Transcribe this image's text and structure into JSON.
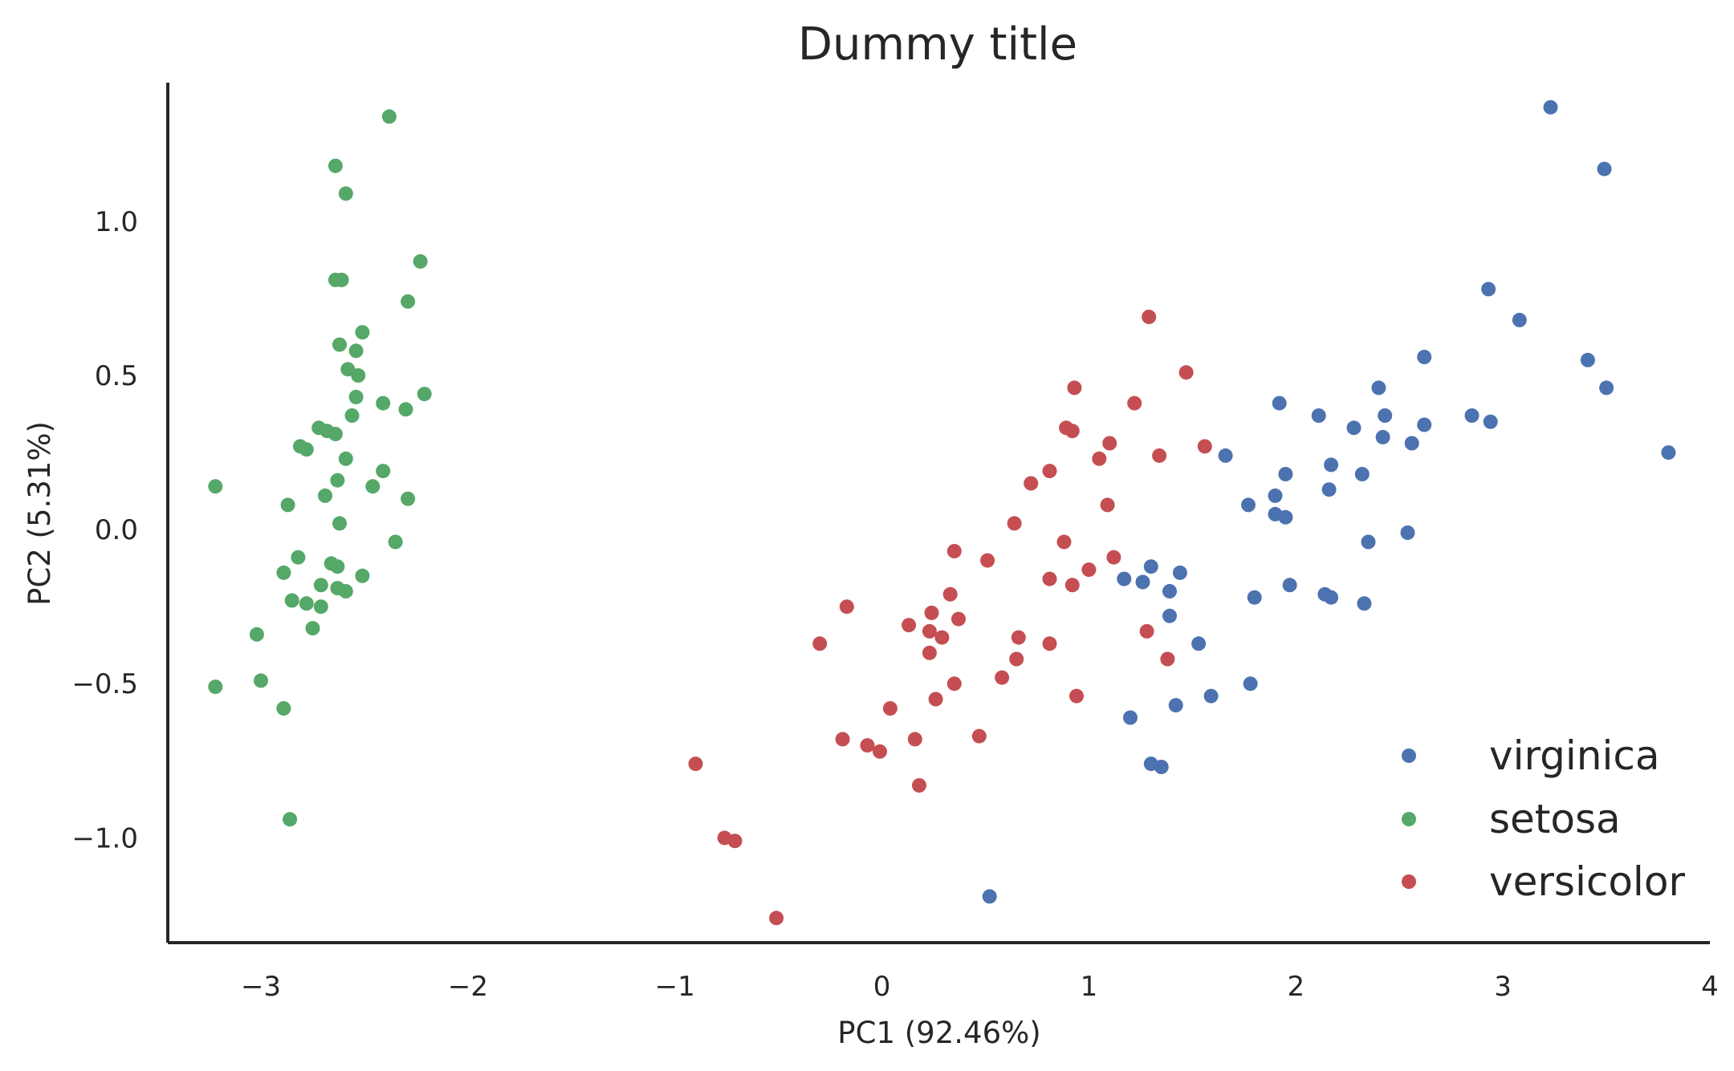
{
  "chart_data": {
    "type": "scatter",
    "title": "Dummy title",
    "xlabel": "PC1 (92.46%)",
    "ylabel": "PC2 (5.31%)",
    "xlim": [
      -3.45,
      4.0
    ],
    "ylim": [
      -1.34,
      1.45
    ],
    "xticks": [
      -3,
      -2,
      -1,
      0,
      1,
      2,
      3,
      4
    ],
    "xtick_labels": [
      "−3",
      "−2",
      "−1",
      "0",
      "1",
      "2",
      "3",
      "4"
    ],
    "yticks": [
      -1.0,
      -0.5,
      0.0,
      0.5,
      1.0
    ],
    "ytick_labels": [
      "−1.0",
      "−0.5",
      "0.0",
      "0.5",
      "1.0"
    ],
    "grid": false,
    "legend_position": "bottom-right",
    "series": [
      {
        "name": "virginica",
        "color": "#4c72b0",
        "points": [
          [
            3.23,
            1.37
          ],
          [
            3.49,
            1.17
          ],
          [
            2.93,
            0.78
          ],
          [
            3.08,
            0.68
          ],
          [
            3.41,
            0.55
          ],
          [
            3.5,
            0.46
          ],
          [
            3.8,
            0.25
          ],
          [
            2.62,
            0.56
          ],
          [
            2.4,
            0.46
          ],
          [
            2.43,
            0.37
          ],
          [
            2.42,
            0.3
          ],
          [
            2.56,
            0.28
          ],
          [
            2.62,
            0.34
          ],
          [
            2.85,
            0.37
          ],
          [
            2.94,
            0.35
          ],
          [
            1.92,
            0.41
          ],
          [
            2.11,
            0.37
          ],
          [
            2.28,
            0.33
          ],
          [
            2.17,
            0.21
          ],
          [
            2.32,
            0.18
          ],
          [
            2.16,
            0.13
          ],
          [
            1.95,
            0.18
          ],
          [
            1.9,
            0.11
          ],
          [
            1.9,
            0.05
          ],
          [
            1.95,
            0.04
          ],
          [
            1.77,
            0.08
          ],
          [
            1.66,
            0.24
          ],
          [
            2.35,
            -0.04
          ],
          [
            2.54,
            -0.01
          ],
          [
            1.3,
            -0.12
          ],
          [
            1.44,
            -0.14
          ],
          [
            1.17,
            -0.16
          ],
          [
            1.26,
            -0.17
          ],
          [
            1.39,
            -0.2
          ],
          [
            1.97,
            -0.18
          ],
          [
            1.8,
            -0.22
          ],
          [
            2.14,
            -0.21
          ],
          [
            2.17,
            -0.22
          ],
          [
            2.33,
            -0.24
          ],
          [
            1.39,
            -0.28
          ],
          [
            1.53,
            -0.37
          ],
          [
            1.78,
            -0.5
          ],
          [
            1.59,
            -0.54
          ],
          [
            1.42,
            -0.57
          ],
          [
            1.2,
            -0.61
          ],
          [
            1.3,
            -0.76
          ],
          [
            1.35,
            -0.77
          ],
          [
            0.52,
            -1.19
          ]
        ]
      },
      {
        "name": "setosa",
        "color": "#55a868",
        "points": [
          [
            -2.38,
            1.34
          ],
          [
            -2.64,
            1.18
          ],
          [
            -2.59,
            1.09
          ],
          [
            -2.23,
            0.87
          ],
          [
            -2.64,
            0.81
          ],
          [
            -2.61,
            0.81
          ],
          [
            -2.29,
            0.74
          ],
          [
            -2.51,
            0.64
          ],
          [
            -2.62,
            0.6
          ],
          [
            -2.54,
            0.58
          ],
          [
            -2.58,
            0.52
          ],
          [
            -2.53,
            0.5
          ],
          [
            -2.21,
            0.44
          ],
          [
            -2.54,
            0.43
          ],
          [
            -2.41,
            0.41
          ],
          [
            -2.3,
            0.39
          ],
          [
            -2.56,
            0.37
          ],
          [
            -2.72,
            0.33
          ],
          [
            -2.68,
            0.32
          ],
          [
            -2.64,
            0.31
          ],
          [
            -2.81,
            0.27
          ],
          [
            -2.78,
            0.26
          ],
          [
            -2.59,
            0.23
          ],
          [
            -2.41,
            0.19
          ],
          [
            -2.63,
            0.16
          ],
          [
            -2.46,
            0.14
          ],
          [
            -3.22,
            0.14
          ],
          [
            -2.69,
            0.11
          ],
          [
            -2.29,
            0.1
          ],
          [
            -2.87,
            0.08
          ],
          [
            -2.62,
            0.02
          ],
          [
            -2.35,
            -0.04
          ],
          [
            -2.82,
            -0.09
          ],
          [
            -2.66,
            -0.11
          ],
          [
            -2.63,
            -0.12
          ],
          [
            -2.89,
            -0.14
          ],
          [
            -2.51,
            -0.15
          ],
          [
            -2.71,
            -0.18
          ],
          [
            -2.63,
            -0.19
          ],
          [
            -2.59,
            -0.2
          ],
          [
            -2.85,
            -0.23
          ],
          [
            -2.78,
            -0.24
          ],
          [
            -2.71,
            -0.25
          ],
          [
            -2.75,
            -0.32
          ],
          [
            -3.02,
            -0.34
          ],
          [
            -3.0,
            -0.49
          ],
          [
            -3.22,
            -0.51
          ],
          [
            -2.89,
            -0.58
          ],
          [
            -2.86,
            -0.94
          ]
        ]
      },
      {
        "name": "versicolor",
        "color": "#c44e52",
        "points": [
          [
            1.29,
            0.69
          ],
          [
            1.47,
            0.51
          ],
          [
            0.93,
            0.46
          ],
          [
            1.22,
            0.41
          ],
          [
            0.89,
            0.33
          ],
          [
            0.92,
            0.32
          ],
          [
            1.56,
            0.27
          ],
          [
            1.1,
            0.28
          ],
          [
            1.34,
            0.24
          ],
          [
            1.05,
            0.23
          ],
          [
            0.81,
            0.19
          ],
          [
            0.72,
            0.15
          ],
          [
            1.09,
            0.08
          ],
          [
            0.64,
            0.02
          ],
          [
            0.88,
            -0.04
          ],
          [
            0.35,
            -0.07
          ],
          [
            1.12,
            -0.09
          ],
          [
            0.51,
            -0.1
          ],
          [
            1.0,
            -0.13
          ],
          [
            0.81,
            -0.16
          ],
          [
            0.92,
            -0.18
          ],
          [
            0.33,
            -0.21
          ],
          [
            -0.17,
            -0.25
          ],
          [
            0.24,
            -0.27
          ],
          [
            0.37,
            -0.29
          ],
          [
            0.13,
            -0.31
          ],
          [
            0.23,
            -0.33
          ],
          [
            0.29,
            -0.35
          ],
          [
            0.66,
            -0.35
          ],
          [
            -0.3,
            -0.37
          ],
          [
            0.81,
            -0.37
          ],
          [
            1.28,
            -0.33
          ],
          [
            0.23,
            -0.4
          ],
          [
            0.65,
            -0.42
          ],
          [
            1.38,
            -0.42
          ],
          [
            0.58,
            -0.48
          ],
          [
            0.35,
            -0.5
          ],
          [
            0.26,
            -0.55
          ],
          [
            0.94,
            -0.54
          ],
          [
            0.04,
            -0.58
          ],
          [
            0.47,
            -0.67
          ],
          [
            0.16,
            -0.68
          ],
          [
            -0.19,
            -0.68
          ],
          [
            -0.07,
            -0.7
          ],
          [
            -0.01,
            -0.72
          ],
          [
            0.18,
            -0.83
          ],
          [
            -0.9,
            -0.76
          ],
          [
            -0.76,
            -1.0
          ],
          [
            -0.71,
            -1.01
          ],
          [
            -0.51,
            -1.26
          ]
        ]
      }
    ],
    "legend": [
      "virginica",
      "setosa",
      "versicolor"
    ]
  }
}
